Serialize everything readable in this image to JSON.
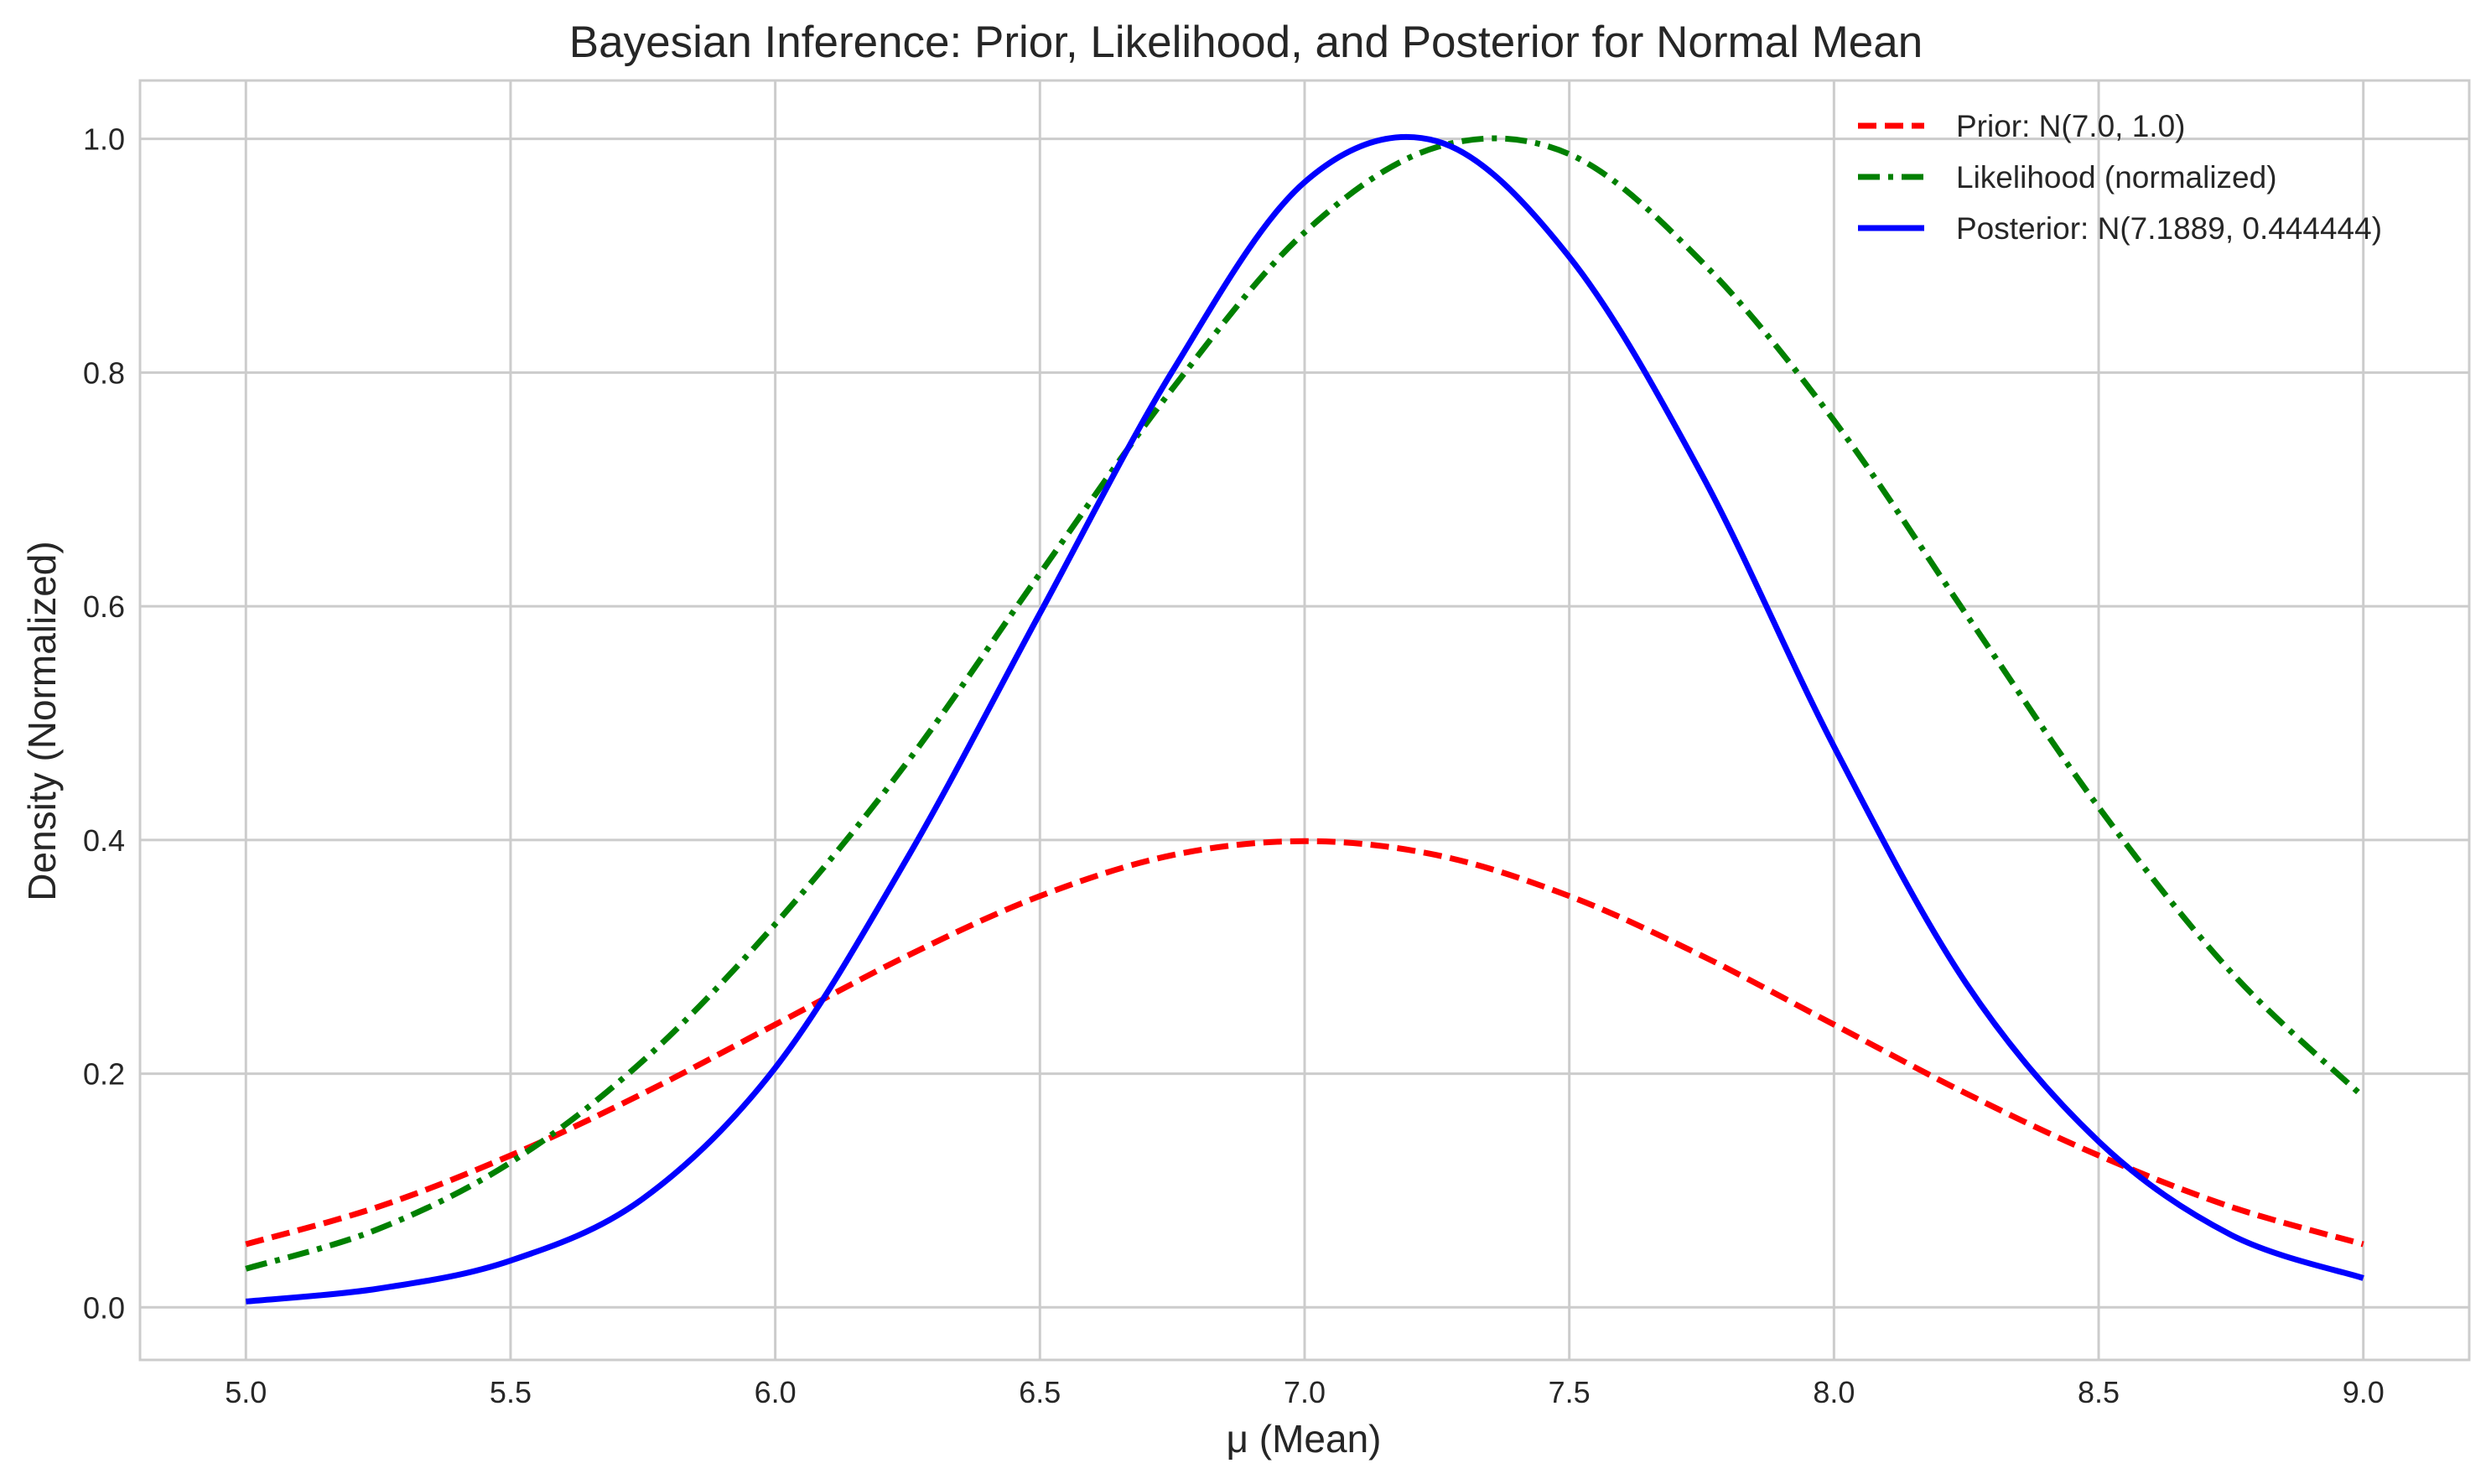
{
  "chart_data": {
    "type": "line",
    "title": "Bayesian Inference: Prior, Likelihood, and Posterior for Normal Mean",
    "xlabel": "μ (Mean)",
    "ylabel": "Density (Normalized)",
    "xlim": [
      4.8,
      9.2
    ],
    "ylim": [
      -0.045,
      1.05
    ],
    "grid": true,
    "legend_position": "upper right",
    "x_ticks": [
      5.0,
      5.5,
      6.0,
      6.5,
      7.0,
      7.5,
      8.0,
      8.5,
      9.0
    ],
    "x_tick_labels": [
      "5.0",
      "5.5",
      "6.0",
      "6.5",
      "7.0",
      "7.5",
      "8.0",
      "8.5",
      "9.0"
    ],
    "y_ticks": [
      0.0,
      0.2,
      0.4,
      0.6,
      0.8,
      1.0
    ],
    "y_tick_labels": [
      "0.0",
      "0.2",
      "0.4",
      "0.6",
      "0.8",
      "1.0"
    ],
    "x": [
      5.0,
      5.25,
      5.5,
      5.75,
      6.0,
      6.25,
      6.5,
      6.75,
      7.0,
      7.25,
      7.5,
      7.75,
      8.0,
      8.25,
      8.5,
      8.75,
      9.0
    ],
    "series": [
      {
        "name": "Prior: N(7.0, 1.0)",
        "color": "#ff0000",
        "style": "dashed",
        "values": [
          0.054,
          0.086,
          0.13,
          0.183,
          0.242,
          0.301,
          0.352,
          0.387,
          0.399,
          0.387,
          0.352,
          0.301,
          0.242,
          0.183,
          0.13,
          0.086,
          0.054
        ]
      },
      {
        "name": "Likelihood (normalized)",
        "color": "#008000",
        "style": "dashdot",
        "values": [
          0.033,
          0.067,
          0.124,
          0.211,
          0.328,
          0.467,
          0.628,
          0.786,
          0.92,
          0.993,
          0.987,
          0.895,
          0.759,
          0.593,
          0.428,
          0.287,
          0.18
        ]
      },
      {
        "name": "Posterior: N(7.1889, 0.444444)",
        "color": "#0000ff",
        "style": "solid",
        "values": [
          0.005,
          0.016,
          0.04,
          0.093,
          0.205,
          0.385,
          0.594,
          0.801,
          0.963,
          0.998,
          0.899,
          0.713,
          0.48,
          0.277,
          0.142,
          0.062,
          0.025
        ]
      }
    ]
  }
}
